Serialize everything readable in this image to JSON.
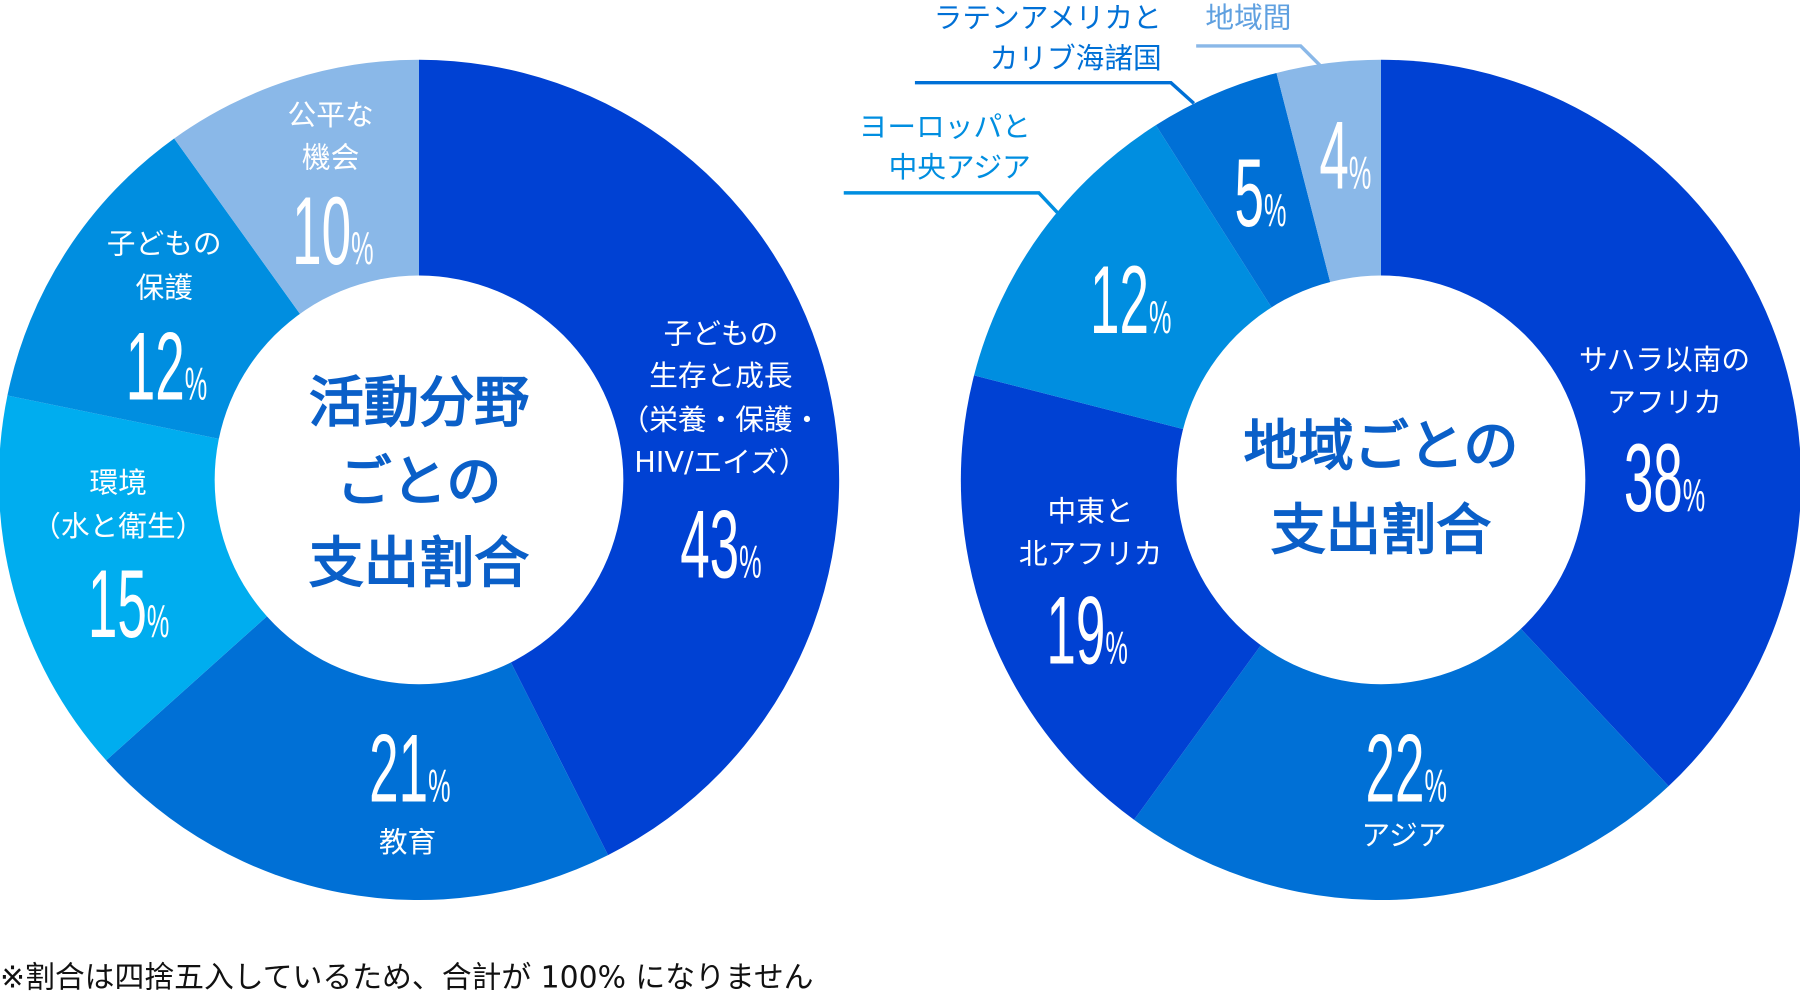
{
  "chart_data": [
    {
      "type": "pie",
      "title": "活動分野ごとの支出割合",
      "title_lines": [
        "活動分野",
        "ごとの",
        "支出割合"
      ],
      "unit": "%",
      "slices": [
        {
          "label": "子どもの生存と成長（栄養・保護・HIV/エイズ）",
          "label_lines": [
            "子どもの",
            "生存と成長",
            "（栄養・保護・",
            "HIV/エイズ）"
          ],
          "value": 43,
          "color": "#0041d3"
        },
        {
          "label": "教育",
          "label_lines": [
            "教育"
          ],
          "value": 21,
          "color": "#0070d6"
        },
        {
          "label": "環境（水と衛生）",
          "label_lines": [
            "環境",
            "（水と衛生）"
          ],
          "value": 15,
          "color": "#00adef"
        },
        {
          "label": "子どもの保護",
          "label_lines": [
            "子どもの",
            "保護"
          ],
          "value": 12,
          "color": "#008ee0"
        },
        {
          "label": "公平な機会",
          "label_lines": [
            "公平な",
            "機会"
          ],
          "value": 10,
          "color": "#8ab8e8"
        }
      ]
    },
    {
      "type": "pie",
      "title": "地域ごとの支出割合",
      "title_lines": [
        "地域ごとの",
        "支出割合"
      ],
      "unit": "%",
      "slices": [
        {
          "label": "サハラ以南のアフリカ",
          "label_lines": [
            "サハラ以南の",
            "アフリカ"
          ],
          "value": 38,
          "color": "#0041d3"
        },
        {
          "label": "アジア",
          "label_lines": [
            "アジア"
          ],
          "value": 22,
          "color": "#0070d6"
        },
        {
          "label": "中東と北アフリカ",
          "label_lines": [
            "中東と",
            "北アフリカ"
          ],
          "value": 19,
          "color": "#0041d3"
        },
        {
          "label": "ヨーロッパと中央アジア",
          "label_lines": [
            "ヨーロッパと",
            "中央アジア"
          ],
          "value": 12,
          "color": "#008ee0"
        },
        {
          "label": "ラテンアメリカとカリブ海諸国",
          "label_lines": [
            "ラテンアメリカと",
            "カリブ海諸国"
          ],
          "value": 5,
          "color": "#0070d6"
        },
        {
          "label": "地域間",
          "label_lines": [
            "地域間"
          ],
          "value": 4,
          "color": "#8ab8e8"
        }
      ]
    }
  ],
  "footnote": "※割合は四捨五入しているため、合計が 100% になりません"
}
